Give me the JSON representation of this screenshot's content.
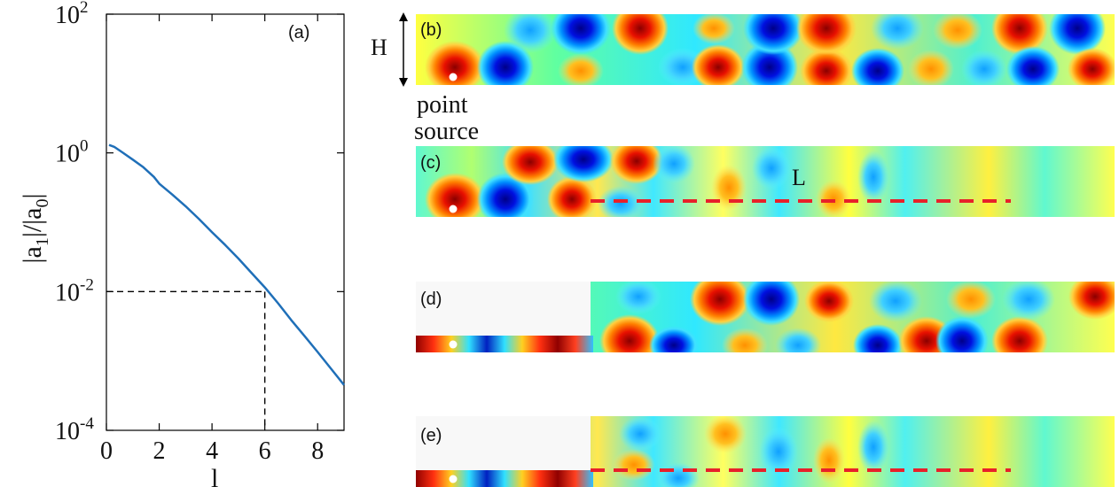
{
  "chart_data": {
    "type": "line",
    "title": "",
    "panel_label": "(a)",
    "xlabel": "l",
    "ylabel": "|a_1|/|a_0|",
    "xlim": [
      0,
      9
    ],
    "ylim": [
      0.0001,
      100
    ],
    "yscale": "log",
    "grid": false,
    "x_ticks": [
      0,
      2,
      4,
      6,
      8
    ],
    "y_ticks": [
      {
        "base": "10",
        "exp": "-4",
        "value": 0.0001
      },
      {
        "base": "10",
        "exp": "-2",
        "value": 0.01
      },
      {
        "base": "10",
        "exp": "0",
        "value": 1
      },
      {
        "base": "10",
        "exp": "2",
        "value": 100
      }
    ],
    "series": [
      {
        "color": "#1f6fb8",
        "x": [
          0.1,
          0.3,
          0.6,
          1.0,
          1.4,
          1.8,
          2.0,
          2.5,
          3.0,
          3.5,
          4.0,
          4.5,
          5.0,
          5.5,
          6.0,
          6.5,
          7.0,
          7.5,
          8.0,
          8.5,
          9.0
        ],
        "y": [
          1.3,
          1.22,
          1.02,
          0.8,
          0.62,
          0.45,
          0.36,
          0.25,
          0.17,
          0.112,
          0.072,
          0.047,
          0.03,
          0.0185,
          0.0115,
          0.0068,
          0.0039,
          0.0023,
          0.00135,
          0.00078,
          0.00045
        ]
      }
    ],
    "reference": {
      "x": 6,
      "y": 0.01,
      "style": "dashed",
      "color": "#000000"
    }
  },
  "panels": [
    {
      "label": "(b)",
      "layout": "full"
    },
    {
      "label": "(c)",
      "layout": "full",
      "length_label": "L"
    },
    {
      "label": "(d)",
      "layout": "step"
    },
    {
      "label": "(e)",
      "layout": "step"
    }
  ],
  "annotations": {
    "height_label": "H",
    "source_label_line1": "point",
    "source_label_line2": "source"
  },
  "colors": {
    "dashed_length": "#e8202a",
    "source_dot": "#ffffff",
    "blank_region": "#f8f8f8"
  }
}
